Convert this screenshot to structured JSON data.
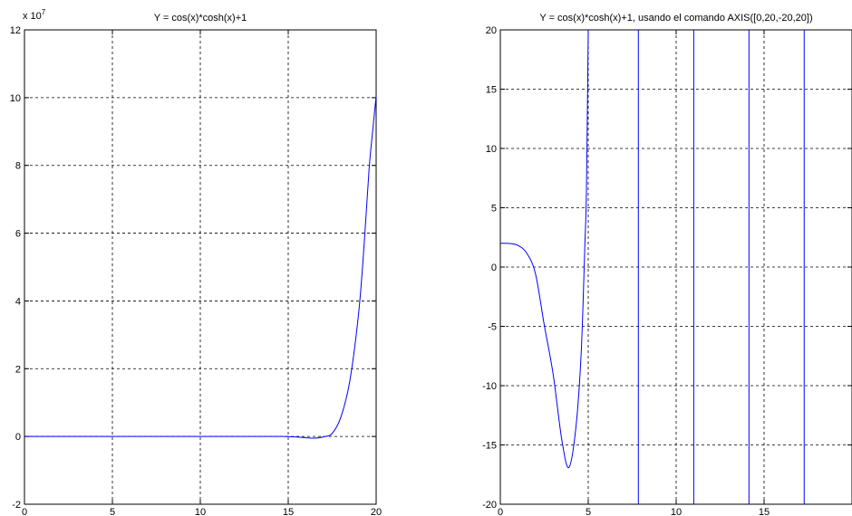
{
  "colors": {
    "line": "#0000ff",
    "axes": "#000000",
    "grid": "#000000",
    "background": "#ffffff"
  },
  "chart_data": [
    {
      "type": "line",
      "title": "Y = cos(x)*cosh(x)+1",
      "xlabel": "",
      "ylabel": "",
      "exponent_label": "x 10",
      "exponent_power": "7",
      "scale": 10000000,
      "xlim": [
        0,
        20
      ],
      "ylim": [
        -2,
        12
      ],
      "x_ticks": [
        0,
        5,
        10,
        15,
        20
      ],
      "y_ticks": [
        -2,
        0,
        2,
        4,
        6,
        8,
        10,
        12
      ],
      "x_tick_labels": [
        "0",
        "5",
        "10",
        "15",
        "20"
      ],
      "y_tick_labels": [
        "-2",
        "0",
        "2",
        "4",
        "6",
        "8",
        "10",
        "12"
      ],
      "grid": true,
      "series": [
        {
          "expression": "cos(x)*cosh(x)+1",
          "color": "#0000ff",
          "x": [
            0,
            10,
            12,
            13,
            14,
            14.5,
            15,
            15.5,
            16,
            16.5,
            17,
            17.5,
            18,
            18.5,
            19,
            19.3,
            19.6,
            19.8,
            20
          ],
          "y": [
            0,
            0.0001,
            0.0007,
            0.0012,
            0.0008,
            -0.0003,
            -0.0025,
            -0.017,
            -0.037,
            -0.05,
            -0.013,
            0.091,
            0.58,
            1.63,
            3.62,
            5.54,
            7.9,
            9.0,
            10.05
          ]
        }
      ]
    },
    {
      "type": "line",
      "title": "Y = cos(x)*cosh(x)+1, usando el comando AXIS([0,20,-20,20])",
      "xlabel": "",
      "ylabel": "",
      "xlim": [
        0,
        20
      ],
      "ylim": [
        -20,
        20
      ],
      "x_ticks": [
        0,
        5,
        10,
        15
      ],
      "y_ticks": [
        -20,
        -15,
        -10,
        -5,
        0,
        5,
        10,
        15,
        20
      ],
      "x_tick_labels": [
        "0",
        "5",
        "10",
        "15"
      ],
      "y_tick_labels": [
        "-20",
        "-15",
        "-10",
        "-5",
        "0",
        "5",
        "10",
        "15",
        "20"
      ],
      "grid": true,
      "series": [
        {
          "expression": "cos(x)*cosh(x)+1",
          "color": "#0000ff",
          "x": [
            0,
            0.5,
            1,
            1.5,
            2,
            2.5,
            3,
            3.5,
            3.9,
            4.3,
            4.6,
            4.8,
            4.9,
            5.0
          ],
          "y": [
            2,
            1.99,
            1.83,
            1.17,
            -0.57,
            -4.9,
            -9.0,
            -14.6,
            -16.9,
            -13.5,
            -7.2,
            1.5,
            6.7,
            20
          ],
          "crossings": [
            7.85,
            11.0,
            14.14,
            17.28
          ]
        }
      ]
    }
  ]
}
